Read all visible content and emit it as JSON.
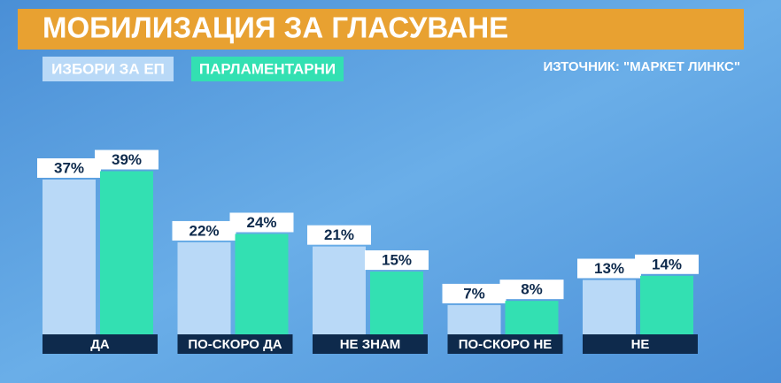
{
  "chart_data": {
    "type": "bar",
    "title": "МОБИЛИЗАЦИЯ ЗА ГЛАСУВАНЕ",
    "source": "ИЗТОЧНИК: \"МАРКЕТ ЛИНКС\"",
    "categories": [
      "ДА",
      "ПО-СКОРО ДА",
      "НЕ ЗНАМ",
      "ПО-СКОРО НЕ",
      "НЕ"
    ],
    "series": [
      {
        "name": "ИЗБОРИ ЗА ЕП",
        "color": "#b9d9f7",
        "values": [
          37,
          22,
          21,
          7,
          13
        ],
        "value_labels": [
          "37%",
          "22%",
          "21%",
          "7%",
          "13%"
        ]
      },
      {
        "name": "ПАРЛАМЕНТАРНИ",
        "color": "#33e0b2",
        "values": [
          39,
          24,
          15,
          8,
          14
        ],
        "value_labels": [
          "39%",
          "24%",
          "15%",
          "8%",
          "14%"
        ]
      }
    ]
  }
}
